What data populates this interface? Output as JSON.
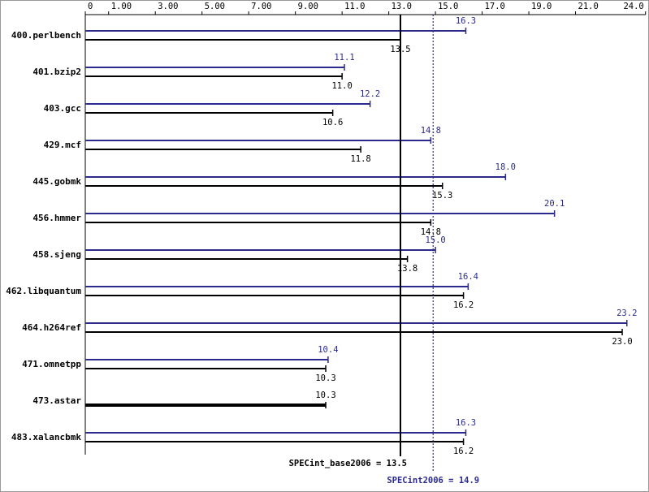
{
  "chart_data": {
    "type": "bar",
    "orientation": "horizontal",
    "categories": [
      "400.perlbench",
      "401.bzip2",
      "403.gcc",
      "429.mcf",
      "445.gobmk",
      "456.hmmer",
      "458.sjeng",
      "462.libquantum",
      "464.h264ref",
      "471.omnetpp",
      "473.astar",
      "483.xalancbmk"
    ],
    "series": [
      {
        "color": "#2b2b8f",
        "values": [
          16.3,
          11.1,
          12.2,
          14.8,
          18.0,
          20.1,
          15.0,
          16.4,
          23.2,
          10.4,
          null,
          16.3
        ],
        "value_labels": [
          "16.3",
          "11.1",
          "12.2",
          "14.8",
          "18.0",
          "20.1",
          "15.0",
          "16.4",
          "23.2",
          "10.4",
          null,
          "16.3"
        ]
      },
      {
        "color": "#000000",
        "values": [
          13.5,
          11.0,
          10.6,
          11.8,
          15.3,
          14.8,
          13.8,
          16.2,
          23.0,
          10.3,
          10.3,
          16.2
        ],
        "value_labels": [
          "13.5",
          "11.0",
          "10.6",
          "11.8",
          "15.3",
          "14.8",
          "13.8",
          "16.2",
          "23.0",
          "10.3",
          "10.3",
          "16.2"
        ]
      }
    ],
    "xlim": [
      0,
      24.0
    ],
    "xticks": [
      0,
      {
        "value": 1,
        "label": "1.00"
      },
      {
        "value": 3,
        "label": "3.00"
      },
      {
        "value": 5,
        "label": "5.00"
      },
      {
        "value": 7,
        "label": "7.00"
      },
      {
        "value": 9,
        "label": "9.00"
      },
      {
        "value": 11,
        "label": "11.0"
      },
      {
        "value": 13,
        "label": "13.0"
      },
      {
        "value": 15,
        "label": "15.0"
      },
      {
        "value": 17,
        "label": "17.0"
      },
      {
        "value": 19,
        "label": "19.0"
      },
      {
        "value": 21,
        "label": "21.0"
      },
      {
        "value": 24,
        "label": "24.0"
      }
    ],
    "reference_lines": [
      {
        "label": "SPECint_base2006 = 13.5",
        "value": 13.5,
        "color": "#000000",
        "style": "solid"
      },
      {
        "label": "SPECint2006 = 14.9",
        "value": 14.9,
        "color": "#2b2b8f",
        "style": "dotted"
      }
    ]
  }
}
